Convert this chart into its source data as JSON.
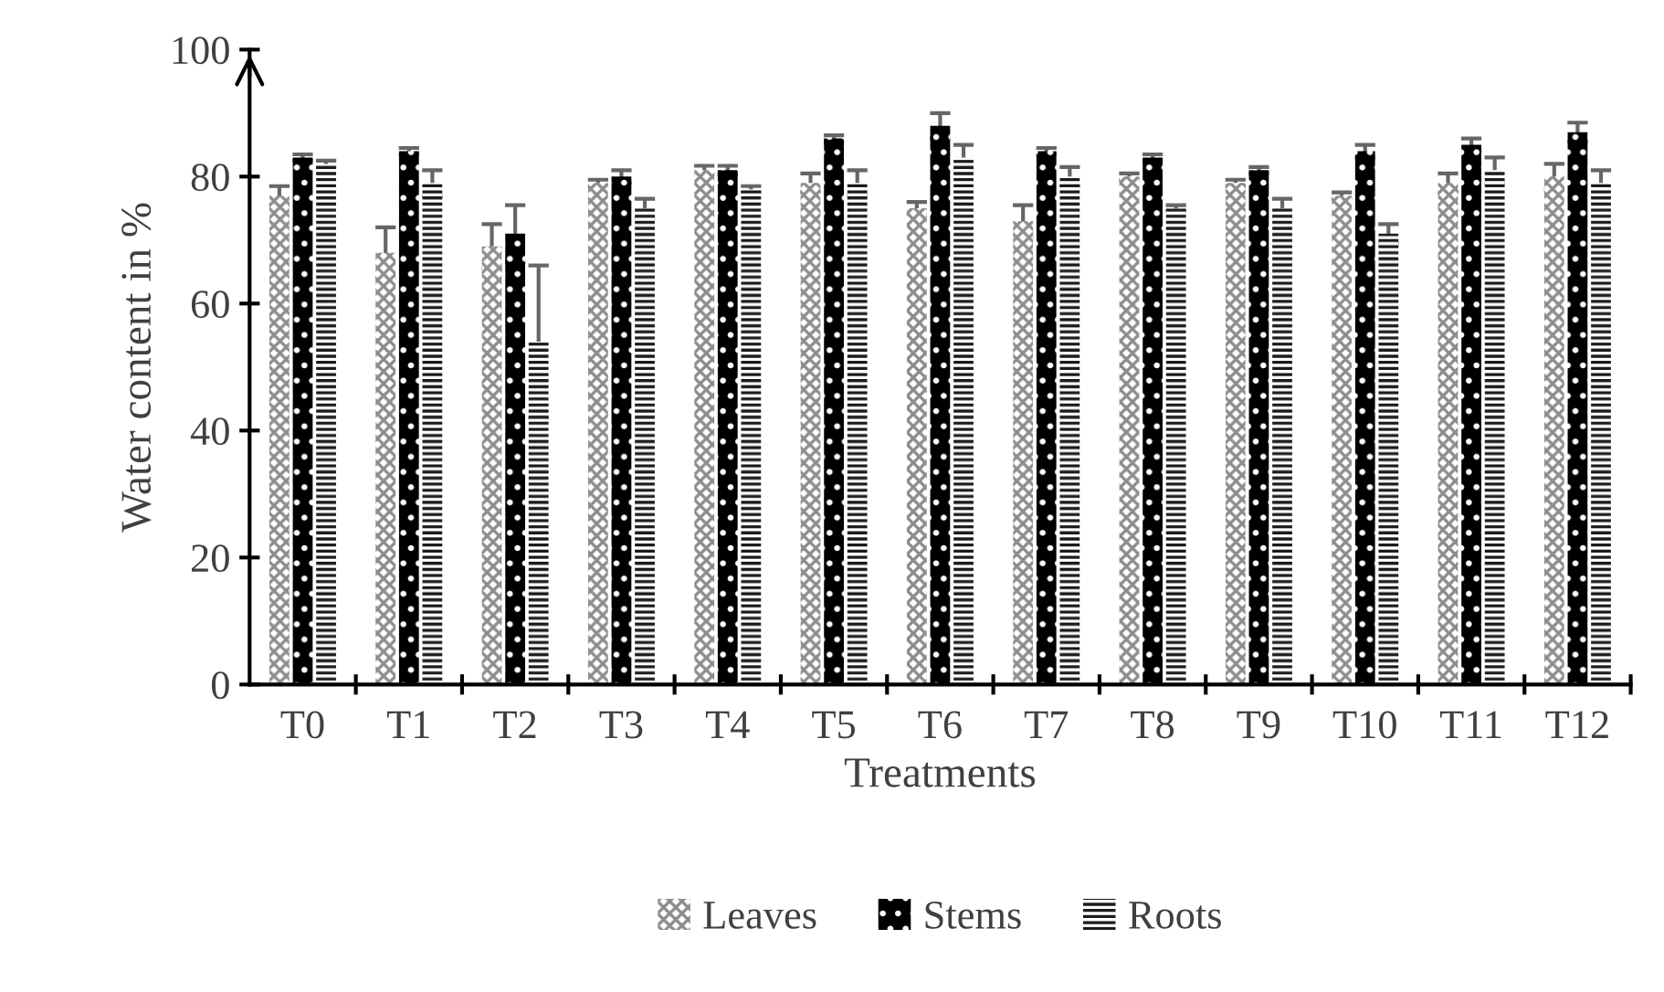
{
  "chart_data": {
    "type": "bar",
    "xlabel": "Treatments",
    "ylabel": "Water content in %",
    "categories": [
      "T0",
      "T1",
      "T2",
      "T3",
      "T4",
      "T5",
      "T6",
      "T7",
      "T8",
      "T9",
      "T10",
      "T11",
      "T12"
    ],
    "series": [
      {
        "name": "Leaves",
        "color": "#8c8c8c",
        "values": [
          77,
          68,
          69,
          79,
          81,
          79,
          75,
          73,
          80,
          79,
          77,
          79,
          80
        ],
        "errors": [
          1.5,
          4,
          3.5,
          0.5,
          0.7,
          1.5,
          1,
          2.5,
          0.5,
          0.5,
          0.5,
          1.5,
          2
        ]
      },
      {
        "name": "Stems",
        "color": "#000000",
        "values": [
          83,
          84,
          71,
          80,
          81,
          86,
          88,
          84,
          83,
          81,
          84,
          85,
          87
        ],
        "errors": [
          0.5,
          0.5,
          4.5,
          1,
          0.7,
          0.5,
          2,
          0.5,
          0.5,
          0.5,
          1,
          1,
          1.5
        ]
      },
      {
        "name": "Roots",
        "color": "#1a1a1a",
        "values": [
          82,
          79,
          54,
          75,
          78,
          79,
          83,
          80,
          75,
          75,
          71,
          81,
          79
        ],
        "errors": [
          0.5,
          2,
          12,
          1.5,
          0.5,
          2,
          2,
          1.5,
          0.5,
          1.5,
          1.5,
          2,
          2
        ]
      }
    ],
    "ylim": [
      0,
      100
    ],
    "yticks": [
      0,
      20,
      40,
      60,
      80,
      100
    ],
    "grid": false,
    "legend": "bottom"
  }
}
